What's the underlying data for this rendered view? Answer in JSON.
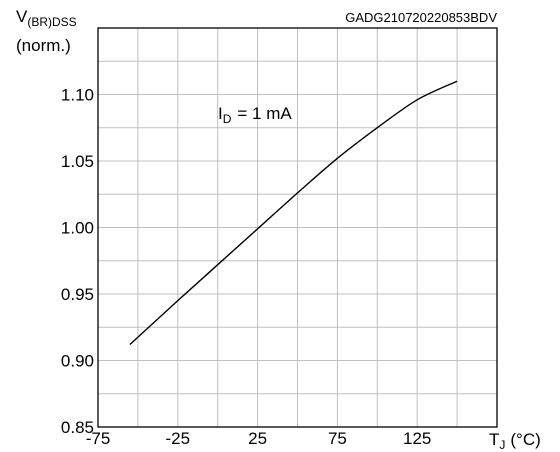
{
  "chart_data": {
    "type": "line",
    "reference_code": "GADG210720220853BDV",
    "ylabel": {
      "main": "V",
      "sub": "(BR)DSS",
      "unit": "(norm.)"
    },
    "xlabel": {
      "main": "T",
      "sub": "J",
      "unit": "(°C)"
    },
    "annotation": {
      "main": "I",
      "sub": "D",
      "rest": "= 1 mA"
    },
    "xlim": [
      -75,
      175
    ],
    "ylim": [
      0.85,
      1.15
    ],
    "x_ticks": [
      -75,
      -25,
      25,
      75,
      125
    ],
    "x_tick_labels": [
      "-75",
      "-25",
      "25",
      "75",
      "125"
    ],
    "y_ticks": [
      0.85,
      0.9,
      0.95,
      1.0,
      1.05,
      1.1
    ],
    "y_tick_labels": [
      "0.85",
      "0.90",
      "0.95",
      "1.00",
      "1.05",
      "1.10"
    ],
    "grid": true,
    "series": [
      {
        "x": [
          -55,
          -25,
          0,
          25,
          50,
          75,
          100,
          125,
          150
        ],
        "y": [
          0.912,
          0.945,
          0.972,
          0.999,
          1.026,
          1.052,
          1.075,
          1.096,
          1.11
        ]
      }
    ]
  }
}
